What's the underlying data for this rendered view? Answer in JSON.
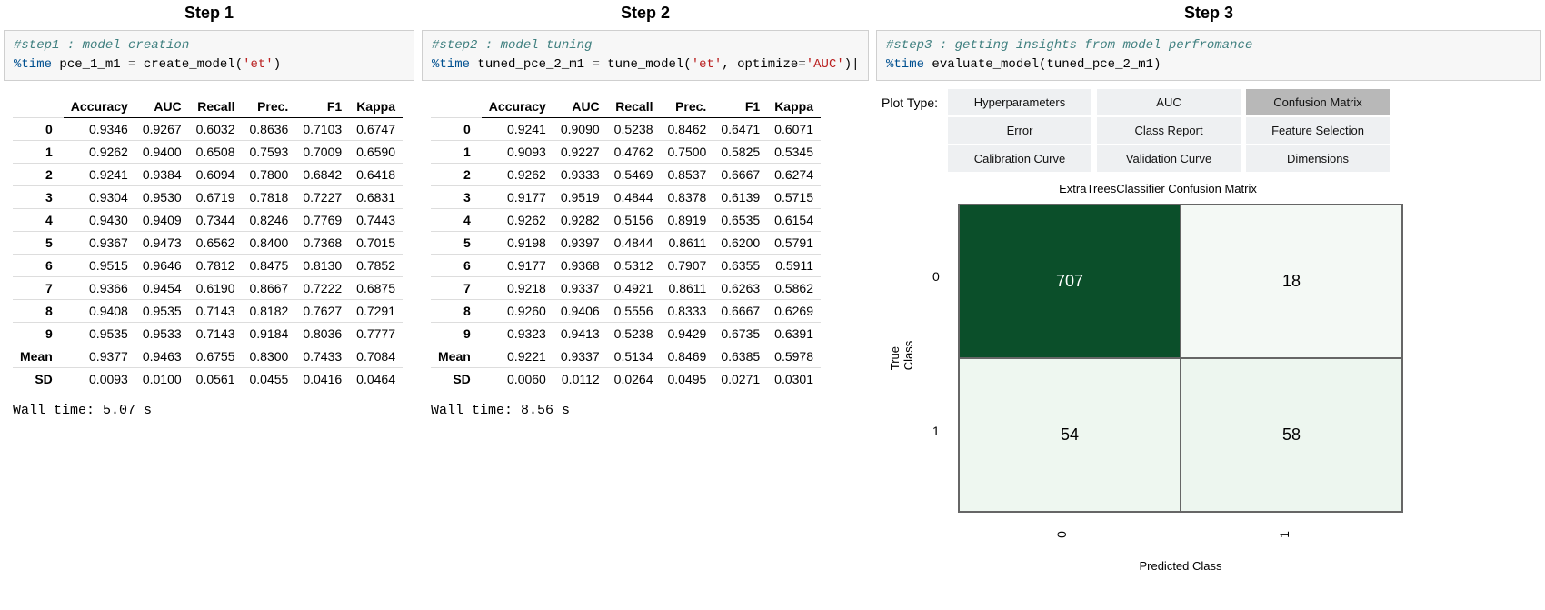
{
  "step1": {
    "title": "Step 1",
    "code_comment": "#step1 : model creation",
    "code_magic": "%time",
    "code_var": "pce_1_m1",
    "code_func": "create_model",
    "code_arg": "'et'",
    "walltime": "Wall time: 5.07 s",
    "table": {
      "columns": [
        "",
        "Accuracy",
        "AUC",
        "Recall",
        "Prec.",
        "F1",
        "Kappa"
      ],
      "rows": [
        [
          "0",
          "0.9346",
          "0.9267",
          "0.6032",
          "0.8636",
          "0.7103",
          "0.6747"
        ],
        [
          "1",
          "0.9262",
          "0.9400",
          "0.6508",
          "0.7593",
          "0.7009",
          "0.6590"
        ],
        [
          "2",
          "0.9241",
          "0.9384",
          "0.6094",
          "0.7800",
          "0.6842",
          "0.6418"
        ],
        [
          "3",
          "0.9304",
          "0.9530",
          "0.6719",
          "0.7818",
          "0.7227",
          "0.6831"
        ],
        [
          "4",
          "0.9430",
          "0.9409",
          "0.7344",
          "0.8246",
          "0.7769",
          "0.7443"
        ],
        [
          "5",
          "0.9367",
          "0.9473",
          "0.6562",
          "0.8400",
          "0.7368",
          "0.7015"
        ],
        [
          "6",
          "0.9515",
          "0.9646",
          "0.7812",
          "0.8475",
          "0.8130",
          "0.7852"
        ],
        [
          "7",
          "0.9366",
          "0.9454",
          "0.6190",
          "0.8667",
          "0.7222",
          "0.6875"
        ],
        [
          "8",
          "0.9408",
          "0.9535",
          "0.7143",
          "0.8182",
          "0.7627",
          "0.7291"
        ],
        [
          "9",
          "0.9535",
          "0.9533",
          "0.7143",
          "0.9184",
          "0.8036",
          "0.7777"
        ],
        [
          "Mean",
          "0.9377",
          "0.9463",
          "0.6755",
          "0.8300",
          "0.7433",
          "0.7084"
        ],
        [
          "SD",
          "0.0093",
          "0.0100",
          "0.0561",
          "0.0455",
          "0.0416",
          "0.0464"
        ]
      ]
    }
  },
  "step2": {
    "title": "Step 2",
    "code_comment": "#step2 : model tuning",
    "code_magic": "%time",
    "code_var": "tuned_pce_2_m1",
    "code_func": "tune_model",
    "code_arg1": "'et'",
    "code_kw": "optimize",
    "code_arg2": "'AUC'",
    "walltime": "Wall time: 8.56 s",
    "table": {
      "columns": [
        "",
        "Accuracy",
        "AUC",
        "Recall",
        "Prec.",
        "F1",
        "Kappa"
      ],
      "rows": [
        [
          "0",
          "0.9241",
          "0.9090",
          "0.5238",
          "0.8462",
          "0.6471",
          "0.6071"
        ],
        [
          "1",
          "0.9093",
          "0.9227",
          "0.4762",
          "0.7500",
          "0.5825",
          "0.5345"
        ],
        [
          "2",
          "0.9262",
          "0.9333",
          "0.5469",
          "0.8537",
          "0.6667",
          "0.6274"
        ],
        [
          "3",
          "0.9177",
          "0.9519",
          "0.4844",
          "0.8378",
          "0.6139",
          "0.5715"
        ],
        [
          "4",
          "0.9262",
          "0.9282",
          "0.5156",
          "0.8919",
          "0.6535",
          "0.6154"
        ],
        [
          "5",
          "0.9198",
          "0.9397",
          "0.4844",
          "0.8611",
          "0.6200",
          "0.5791"
        ],
        [
          "6",
          "0.9177",
          "0.9368",
          "0.5312",
          "0.7907",
          "0.6355",
          "0.5911"
        ],
        [
          "7",
          "0.9218",
          "0.9337",
          "0.4921",
          "0.8611",
          "0.6263",
          "0.5862"
        ],
        [
          "8",
          "0.9260",
          "0.9406",
          "0.5556",
          "0.8333",
          "0.6667",
          "0.6269"
        ],
        [
          "9",
          "0.9323",
          "0.9413",
          "0.5238",
          "0.9429",
          "0.6735",
          "0.6391"
        ],
        [
          "Mean",
          "0.9221",
          "0.9337",
          "0.5134",
          "0.8469",
          "0.6385",
          "0.5978"
        ],
        [
          "SD",
          "0.0060",
          "0.0112",
          "0.0264",
          "0.0495",
          "0.0271",
          "0.0301"
        ]
      ]
    }
  },
  "step3": {
    "title": "Step 3",
    "code_comment": "#step3 : getting insights from model perfromance",
    "code_magic": "%time",
    "code_func": "evaluate_model",
    "code_arg": "tuned_pce_2_m1",
    "plot_type_label": "Plot Type:",
    "buttons": {
      "colA": [
        "Hyperparameters",
        "Error",
        "Calibration Curve"
      ],
      "colB": [
        "AUC",
        "Class Report",
        "Validation Curve"
      ],
      "colC": [
        "Confusion Matrix",
        "Feature Selection",
        "Dimensions"
      ]
    },
    "selected_button": "Confusion Matrix",
    "confusion": {
      "title": "ExtraTreesClassifier Confusion Matrix",
      "ylabel": "True Class",
      "xlabel": "Predicted Class",
      "yticks": [
        "0",
        "1"
      ],
      "xticks": [
        "0",
        "1"
      ],
      "cells": [
        {
          "value": "707",
          "bg": "#0b4f2a",
          "fg": "#ffffff"
        },
        {
          "value": "18",
          "bg": "#f4f9f5",
          "fg": "#000000"
        },
        {
          "value": "54",
          "bg": "#eef7f0",
          "fg": "#000000"
        },
        {
          "value": "58",
          "bg": "#edf6ef",
          "fg": "#000000"
        }
      ]
    }
  }
}
